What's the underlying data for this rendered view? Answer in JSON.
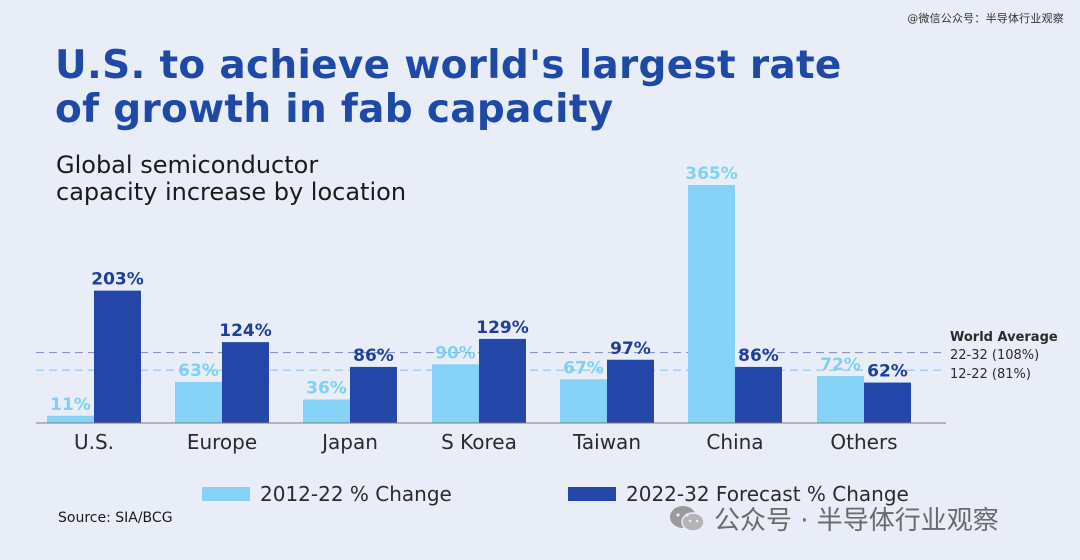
{
  "watermark_top": "@微信公众号：半导体行业观察",
  "watermark_bottom": "公众号 · 半导体行业观察",
  "source": "Source: SIA/BCG",
  "colors": {
    "title": "#1f49a6",
    "series_2012": "#84d3f7",
    "series_2022": "#2346a8",
    "background": "#e8edf8"
  },
  "chart_data": {
    "type": "bar",
    "title": "U.S. to achieve world's largest rate of growth in fab capacity",
    "title_lines": [
      "U.S. to achieve world's largest rate",
      "of growth in fab capacity"
    ],
    "subtitle": "Global semiconductor capacity increase by location",
    "subtitle_lines": [
      "Global semiconductor",
      "capacity increase by location"
    ],
    "categories": [
      "U.S.",
      "Europe",
      "Japan",
      "S Korea",
      "Taiwan",
      "China",
      "Others"
    ],
    "series": [
      {
        "name": "2012-22 % Change",
        "values": [
          11,
          63,
          36,
          90,
          67,
          365,
          72
        ],
        "labels": [
          "11%",
          "63%",
          "36%",
          "90%",
          "67%",
          "365%",
          "72%"
        ],
        "color": "#84d3f7"
      },
      {
        "name": "2022-32 Forecast % Change",
        "values": [
          203,
          124,
          86,
          129,
          97,
          86,
          62
        ],
        "labels": [
          "203%",
          "124%",
          "86%",
          "129%",
          "97%",
          "86%",
          "62%"
        ],
        "color": "#2346a8"
      }
    ],
    "reference_lines": {
      "title": "World Average",
      "items": [
        {
          "label": "22-32 (108%)",
          "value": 108,
          "color": "#8a96c6"
        },
        {
          "label": "12-22 (81%)",
          "value": 81,
          "color": "#8ac8e8"
        }
      ]
    },
    "legend_position": "bottom",
    "ylim": [
      0,
      400
    ],
    "grid": false
  }
}
